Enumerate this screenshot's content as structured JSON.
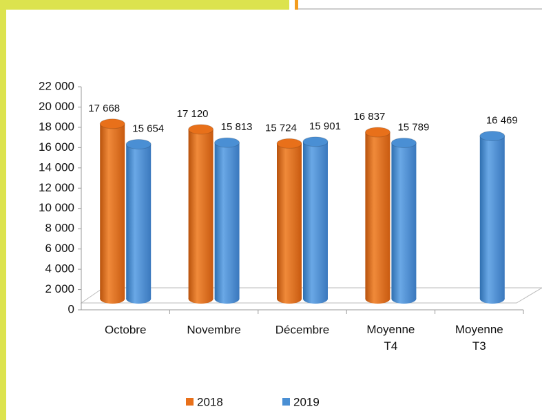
{
  "chart_data": {
    "type": "bar3d",
    "categories": [
      "Octobre",
      "Novembre",
      "Décembre",
      "Moyenne T4",
      "Moyenne T3"
    ],
    "series": [
      {
        "name": "2018",
        "color": "#e8701a",
        "values": [
          17668,
          17120,
          15724,
          16837,
          null
        ],
        "value_labels": [
          "17 668",
          "17 120",
          "15 724",
          "16 837",
          null
        ]
      },
      {
        "name": "2019",
        "color": "#4a8fd4",
        "values": [
          15654,
          15813,
          15901,
          15789,
          16469
        ],
        "value_labels": [
          "15 654",
          "15 813",
          "15 901",
          "15 789",
          "16 469"
        ]
      }
    ],
    "ylim": [
      0,
      22000
    ],
    "yticks": [
      0,
      {
        "value": 2000,
        "label": "2 000"
      },
      {
        "value": 4000,
        "label": "4 000"
      },
      {
        "value": 6000,
        "label": "6 000"
      },
      {
        "value": 8000,
        "label": "8 000"
      },
      {
        "value": 10000,
        "label": "10 000"
      },
      {
        "value": 12000,
        "label": "12 000"
      },
      {
        "value": 14000,
        "label": "14 000"
      },
      {
        "value": 16000,
        "label": "16 000"
      },
      {
        "value": 18000,
        "label": "18 000"
      },
      {
        "value": 20000,
        "label": "20 000"
      },
      {
        "value": 22000,
        "label": "22 000"
      }
    ],
    "grid": false,
    "legend": "bottom"
  }
}
